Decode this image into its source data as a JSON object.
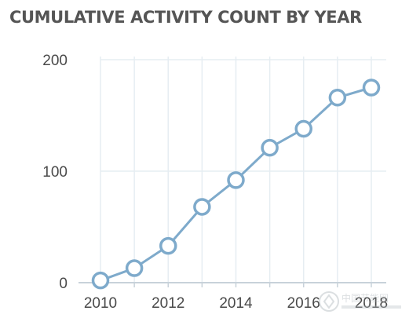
{
  "chart_data": {
    "type": "line",
    "title": "CUMULATIVE ACTIVITY COUNT BY YEAR",
    "xlabel": "",
    "ylabel": "",
    "x": [
      2010,
      2011,
      2012,
      2013,
      2014,
      2015,
      2016,
      2017,
      2018
    ],
    "series": [
      {
        "values": [
          2,
          13,
          33,
          68,
          92,
          121,
          138,
          166,
          175
        ],
        "color": "#7eaacb"
      }
    ],
    "xlim": [
      2010,
      2018
    ],
    "ylim": [
      0,
      200
    ],
    "xticks": [
      "2010",
      "2012",
      "2014",
      "2016",
      "2018"
    ],
    "yticks": [
      "0",
      "100",
      "200"
    ],
    "grid": true,
    "legend": "none",
    "colors": {
      "line": "#7eaacb",
      "marker_fill": "#ffffff",
      "grid": "#e6edf2",
      "axis": "#c8d2da",
      "text": "#4a4a4a"
    }
  },
  "watermark_text": "中国节能网"
}
